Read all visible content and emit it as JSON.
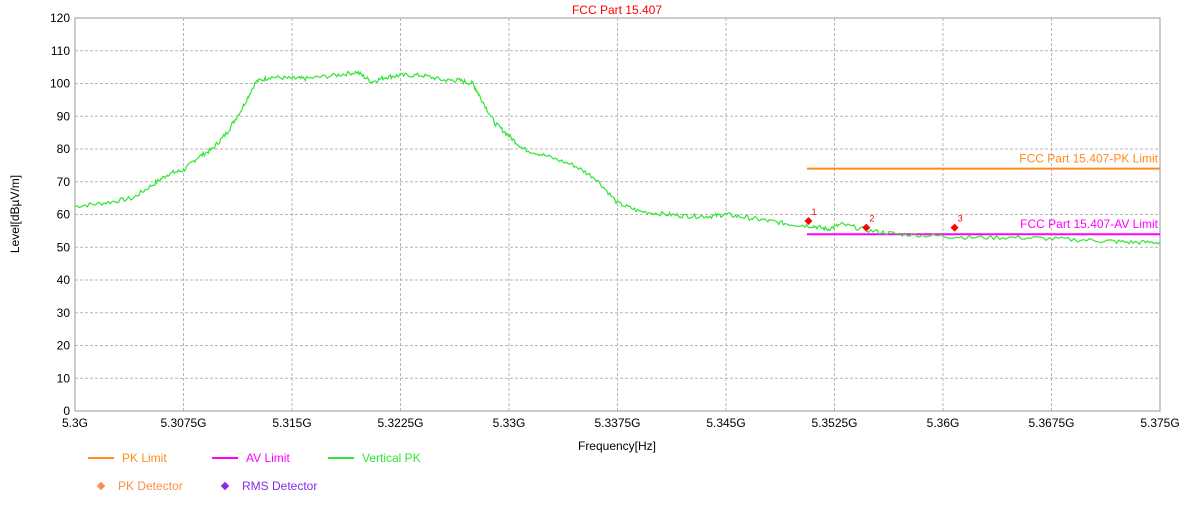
{
  "chart_data": {
    "type": "line",
    "title": "FCC Part 15.407",
    "xlabel": "Frequency[Hz]",
    "ylabel": "Level[dBµV/m]",
    "xlim": [
      5.3,
      5.375
    ],
    "ylim": [
      0,
      120
    ],
    "x_unit_suffix": "G",
    "x_ticks": [
      5.3,
      5.3075,
      5.315,
      5.3225,
      5.33,
      5.3375,
      5.345,
      5.3525,
      5.36,
      5.3675,
      5.375
    ],
    "x_tick_labels": [
      "5.3G",
      "5.3075G",
      "5.315G",
      "5.3225G",
      "5.33G",
      "5.3375G",
      "5.345G",
      "5.3525G",
      "5.36G",
      "5.3675G",
      "5.375G"
    ],
    "y_ticks": [
      0,
      10,
      20,
      30,
      40,
      50,
      60,
      70,
      80,
      90,
      100,
      110,
      120
    ],
    "grid": true,
    "series": [
      {
        "name": "PK Limit",
        "color": "#FF8C1A",
        "x": [
          5.3506,
          5.375
        ],
        "y": [
          74,
          74
        ]
      },
      {
        "name": "AV Limit",
        "color": "#FF00FF",
        "x": [
          5.3506,
          5.375
        ],
        "y": [
          54,
          54
        ]
      },
      {
        "name": "Vertical PK",
        "color": "#33E633",
        "x": [
          5.3,
          5.302,
          5.304,
          5.3055,
          5.3065,
          5.3075,
          5.3085,
          5.3095,
          5.3105,
          5.3115,
          5.3125,
          5.3135,
          5.315,
          5.316,
          5.318,
          5.3195,
          5.3205,
          5.3215,
          5.3225,
          5.324,
          5.3255,
          5.3265,
          5.3275,
          5.328,
          5.329,
          5.33,
          5.331,
          5.3325,
          5.3345,
          5.336,
          5.3375,
          5.339,
          5.341,
          5.3425,
          5.344,
          5.345,
          5.3465,
          5.348,
          5.3495,
          5.351,
          5.352,
          5.353,
          5.355,
          5.357,
          5.3595,
          5.362,
          5.365,
          5.368,
          5.371,
          5.373,
          5.375
        ],
        "y": [
          62.5,
          63.5,
          65,
          69.5,
          72.5,
          73.5,
          77.5,
          80,
          85,
          92,
          100.5,
          102,
          101.5,
          101.5,
          102.5,
          103.5,
          100.5,
          102,
          102.5,
          102.5,
          101,
          101,
          100,
          96,
          88,
          84,
          80,
          78,
          75,
          71,
          63.5,
          61,
          60,
          59.5,
          59.5,
          60,
          59,
          58,
          57,
          56.5,
          55.5,
          57,
          55,
          54,
          53.5,
          53,
          53,
          52.5,
          52,
          51.5,
          51.5
        ]
      }
    ],
    "markers": [
      {
        "label": "1",
        "x": 5.3507,
        "y": 58
      },
      {
        "label": "2",
        "x": 5.3547,
        "y": 56
      },
      {
        "label": "3",
        "x": 5.3608,
        "y": 56
      }
    ],
    "annotations": [
      {
        "text": "FCC Part 15.407-PK Limit",
        "color": "#FF8C1A",
        "y": 74
      },
      {
        "text": "FCC Part 15.407-AV Limit",
        "color": "#FF00FF",
        "y": 54
      }
    ],
    "legend": {
      "placement": "bottom-left",
      "entries": [
        {
          "label": "PK Limit",
          "kind": "line",
          "color": "#FF8C1A"
        },
        {
          "label": "AV Limit",
          "kind": "line",
          "color": "#FF00FF"
        },
        {
          "label": "Vertical PK",
          "kind": "line",
          "color": "#33E633"
        },
        {
          "label": "PK Detector",
          "kind": "diamond",
          "color": "#FF8C4A"
        },
        {
          "label": "RMS Detector",
          "kind": "diamond",
          "color": "#8A2BE2"
        }
      ]
    },
    "colors": {
      "title": "#FF0000",
      "marker": "#FF0000",
      "legend_text_default": "#FF8C1A"
    }
  }
}
